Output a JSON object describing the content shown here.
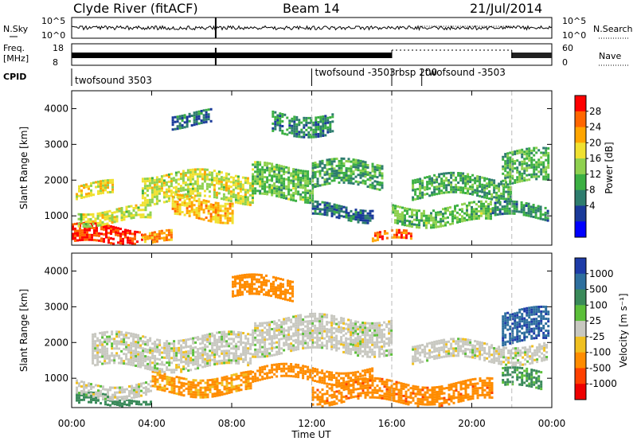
{
  "header": {
    "station": "Clyde River (fitACF)",
    "beam": "Beam 14",
    "date": "21/Jul/2014"
  },
  "top_panels": {
    "nsky_label": "N.Sky",
    "nsky_ticks": [
      "10^5",
      "10^0"
    ],
    "nsearch_label": "N.Search",
    "nsearch_ticks": [
      "10^5",
      "10^0"
    ],
    "freq_label": "Freq.",
    "freq_unit": "[MHz]",
    "freq_ticks": [
      "18",
      "8"
    ],
    "nave_label": "Nave",
    "nave_ticks": [
      "60",
      "0"
    ],
    "cpid_label": "CPID",
    "cpid_segments": [
      {
        "start": 0.0,
        "end": 12.0,
        "label": "twofsound 3503"
      },
      {
        "start": 12.0,
        "end": 16.0,
        "label": "twofsound -3503"
      },
      {
        "start": 16.0,
        "end": 17.5,
        "label": "rbsp 200"
      },
      {
        "start": 17.5,
        "end": 22.0,
        "label": "twofsound -3503"
      }
    ],
    "cpid_boundaries": [
      12.0,
      16.0,
      22.0
    ]
  },
  "axes": {
    "y_label": "Slant Range [km]",
    "y_ticks": [
      "1000",
      "2000",
      "3000",
      "4000"
    ],
    "x_label": "Time UT",
    "x_ticks": [
      "00:00",
      "04:00",
      "08:00",
      "12:00",
      "16:00",
      "20:00",
      "00:00"
    ]
  },
  "colorbars": {
    "power": {
      "label": "Power [dB]",
      "ticks": [
        "4",
        "8",
        "12",
        "16",
        "20",
        "24",
        "28"
      ],
      "colors": [
        "#0000ff",
        "#1a3a9a",
        "#2e7d6e",
        "#3cb043",
        "#8fd14f",
        "#f0e130",
        "#ffa500",
        "#ff6600",
        "#ff0000"
      ]
    },
    "velocity": {
      "label": "Velocity [m s⁻¹]",
      "ticks": [
        "1000",
        "500",
        "100",
        "25",
        "-25",
        "-100",
        "-500",
        "-1000"
      ],
      "colors": [
        "#1e3ca8",
        "#2e6f9e",
        "#3a8a5a",
        "#5cbf3a",
        "#c8c8c0",
        "#f0c020",
        "#ff8c00",
        "#ff4000",
        "#ee0000"
      ]
    }
  },
  "chart_data": [
    {
      "type": "heatmap",
      "title": "Power [dB]",
      "x": {
        "label": "Time UT",
        "range_hours": [
          0,
          24
        ]
      },
      "y": {
        "label": "Slant Range [km]",
        "range": [
          180,
          4500
        ]
      },
      "color_range": [
        0,
        32
      ],
      "bands": [
        {
          "t0": 0.0,
          "t1": 3.5,
          "r0": 200,
          "r1": 700,
          "value": 29
        },
        {
          "t0": 3.5,
          "t1": 5.0,
          "r0": 200,
          "r1": 500,
          "value": 24
        },
        {
          "t0": 0.3,
          "t1": 4.0,
          "r0": 800,
          "r1": 1200,
          "value": 18
        },
        {
          "t0": 0.2,
          "t1": 2.0,
          "r0": 1500,
          "r1": 1900,
          "value": 20
        },
        {
          "t0": 3.5,
          "t1": 9.0,
          "r0": 1400,
          "r1": 2200,
          "value": 18
        },
        {
          "t0": 5.0,
          "t1": 8.0,
          "r0": 900,
          "r1": 1500,
          "value": 22
        },
        {
          "t0": 9.0,
          "t1": 12.0,
          "r0": 1500,
          "r1": 2400,
          "value": 14
        },
        {
          "t0": 12.0,
          "t1": 15.5,
          "r0": 1800,
          "r1": 2500,
          "value": 12
        },
        {
          "t0": 12.0,
          "t1": 15.0,
          "r0": 900,
          "r1": 1300,
          "value": 8
        },
        {
          "t0": 15.0,
          "t1": 17.0,
          "r0": 250,
          "r1": 500,
          "value": 27
        },
        {
          "t0": 16.0,
          "t1": 21.0,
          "r0": 800,
          "r1": 1300,
          "value": 14
        },
        {
          "t0": 17.0,
          "t1": 22.0,
          "r0": 1500,
          "r1": 2100,
          "value": 12
        },
        {
          "t0": 21.5,
          "t1": 23.8,
          "r0": 1900,
          "r1": 2800,
          "value": 13
        },
        {
          "t0": 21.0,
          "t1": 23.8,
          "r0": 900,
          "r1": 1300,
          "value": 10
        },
        {
          "t0": 10.0,
          "t1": 13.0,
          "r0": 3300,
          "r1": 3900,
          "value": 10
        },
        {
          "t0": 5.0,
          "t1": 7.0,
          "r0": 3500,
          "r1": 3900,
          "value": 8
        }
      ]
    },
    {
      "type": "heatmap",
      "title": "Velocity [m s⁻¹]",
      "x": {
        "label": "Time UT",
        "range_hours": [
          0,
          24
        ]
      },
      "y": {
        "label": "Slant Range [km]",
        "range": [
          180,
          4500
        ]
      },
      "color_levels": [
        -1000,
        -500,
        -100,
        -25,
        25,
        100,
        500,
        1000
      ],
      "bands": [
        {
          "t0": 0.2,
          "t1": 4.0,
          "r0": 200,
          "r1": 500,
          "value": 150
        },
        {
          "t0": 0.2,
          "t1": 4.0,
          "r0": 500,
          "r1": 900,
          "value": 0
        },
        {
          "t0": 4.0,
          "t1": 9.0,
          "r0": 600,
          "r1": 1100,
          "value": -120
        },
        {
          "t0": 1.0,
          "t1": 9.0,
          "r0": 1300,
          "r1": 2200,
          "value": 0
        },
        {
          "t0": 9.0,
          "t1": 16.0,
          "r0": 1700,
          "r1": 2700,
          "value": 0
        },
        {
          "t0": 9.0,
          "t1": 15.0,
          "r0": 900,
          "r1": 1300,
          "value": -300
        },
        {
          "t0": 12.0,
          "t1": 21.0,
          "r0": 300,
          "r1": 900,
          "value": -400
        },
        {
          "t0": 17.0,
          "t1": 23.8,
          "r0": 1500,
          "r1": 2000,
          "value": 0
        },
        {
          "t0": 21.5,
          "t1": 23.8,
          "r0": 2000,
          "r1": 2900,
          "value": 900
        },
        {
          "t0": 21.5,
          "t1": 23.5,
          "r0": 700,
          "r1": 1200,
          "value": 120
        },
        {
          "t0": 8.0,
          "t1": 11.0,
          "r0": 3200,
          "r1": 3800,
          "value": -200
        }
      ]
    }
  ]
}
